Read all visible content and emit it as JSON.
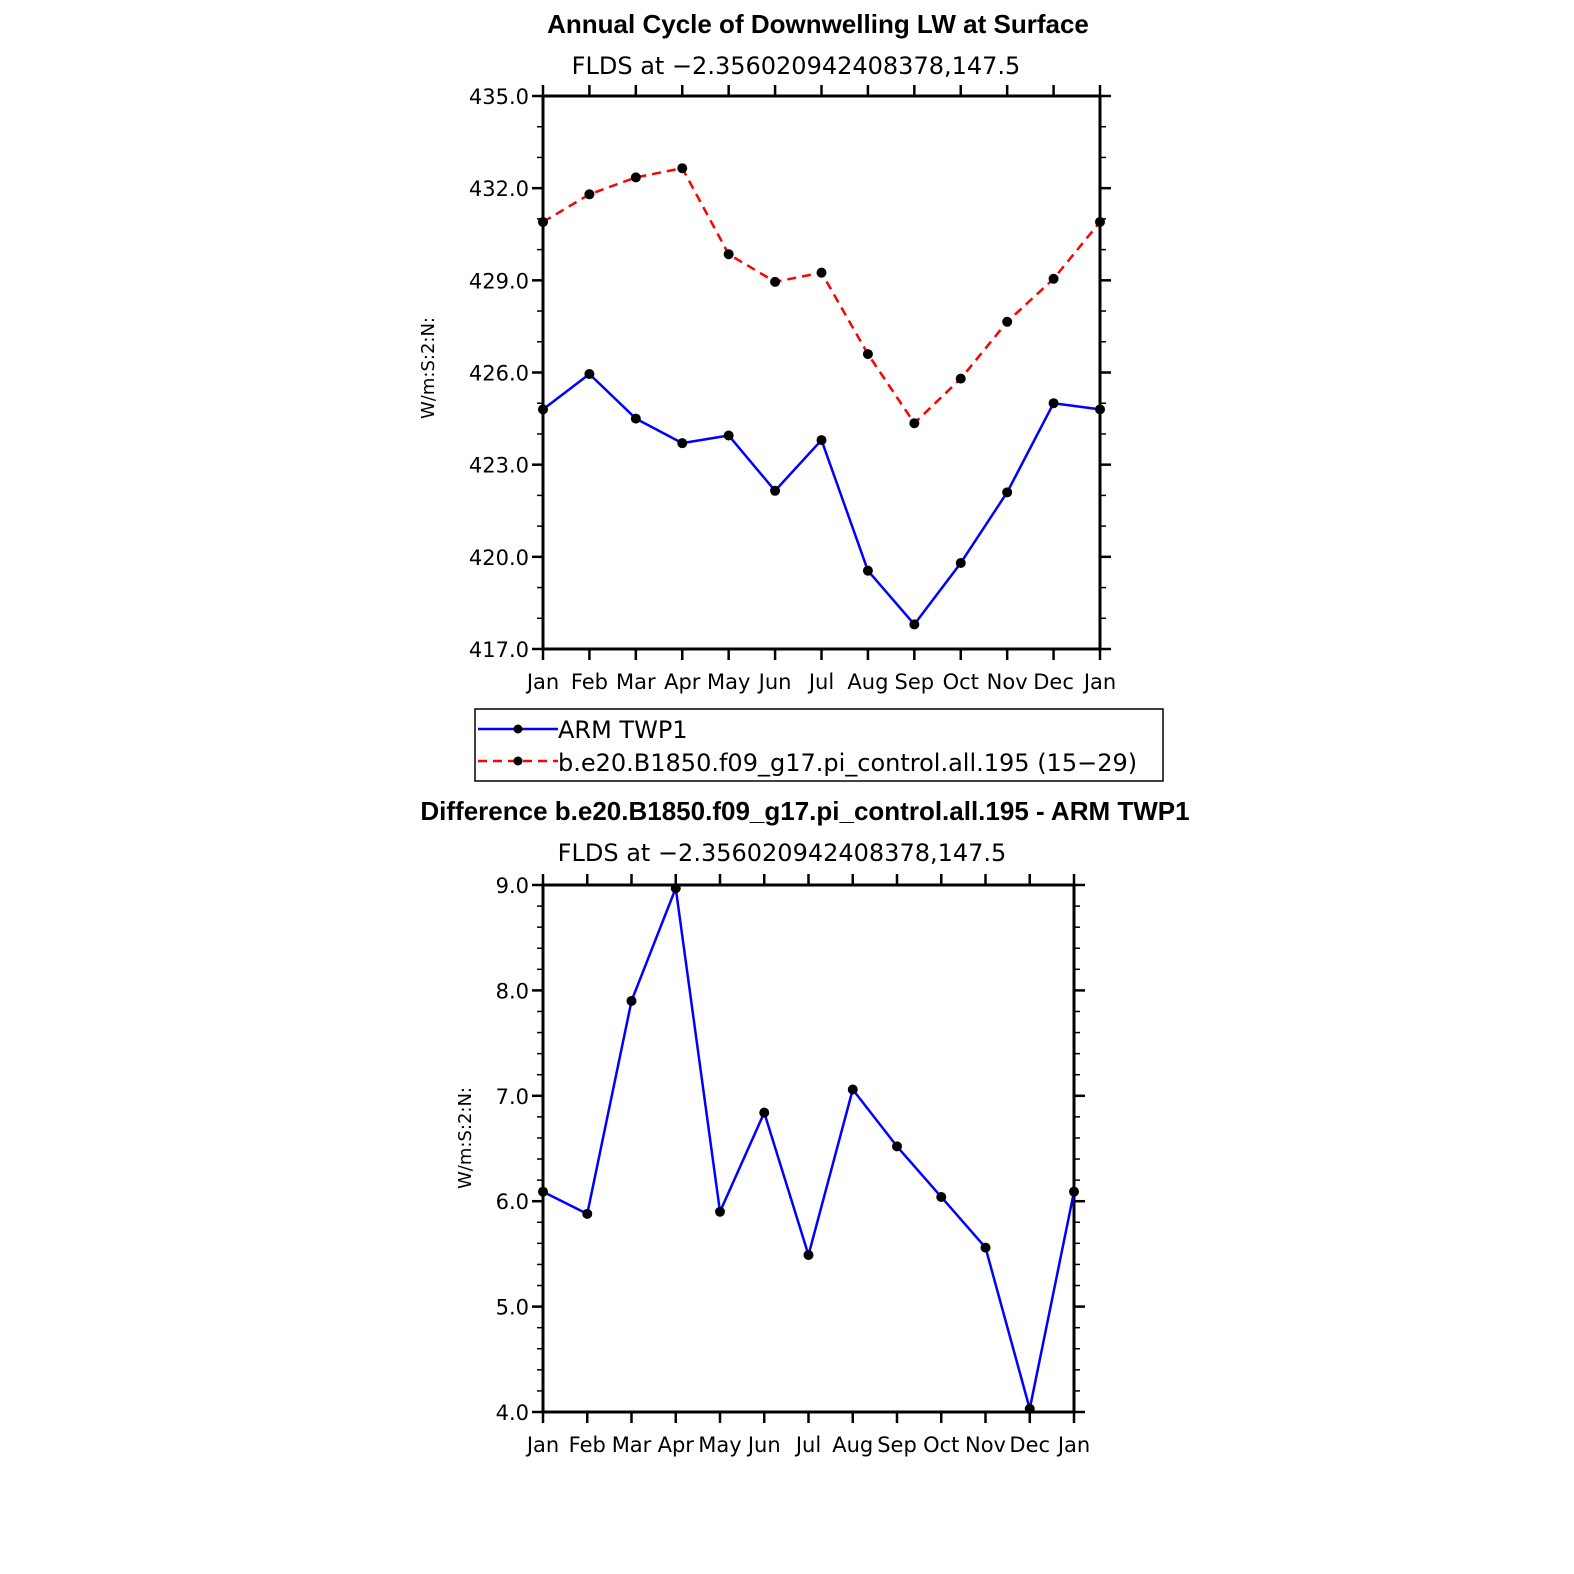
{
  "chart_data": [
    {
      "type": "line",
      "title": "Annual Cycle of Downwelling LW at Surface",
      "subtitle": "FLDS at −2.356020942408378,147.5",
      "ylabel": "W/m:S:2:N:",
      "xlabel": "",
      "categories": [
        "Jan",
        "Feb",
        "Mar",
        "Apr",
        "May",
        "Jun",
        "Jul",
        "Aug",
        "Sep",
        "Oct",
        "Nov",
        "Dec",
        "Jan"
      ],
      "ylim": [
        417.0,
        435.0
      ],
      "yticks": [
        417.0,
        420.0,
        423.0,
        426.0,
        429.0,
        432.0,
        435.0
      ],
      "ytick_labels": [
        "417.0",
        "420.0",
        "423.0",
        "426.0",
        "429.0",
        "432.0",
        "435.0"
      ],
      "grid": false,
      "legend_position": "bottom",
      "series": [
        {
          "name": "ARM TWP1",
          "color": "#0000ff",
          "dash": "solid",
          "values": [
            424.8,
            425.95,
            424.5,
            423.7,
            423.95,
            422.15,
            423.8,
            419.55,
            417.8,
            419.8,
            422.1,
            425.0,
            424.8
          ]
        },
        {
          "name": "b.e20.B1850.f09_g17.pi_control.all.195 (15−29)",
          "color": "#ff0000",
          "dash": "dashed",
          "values": [
            430.9,
            431.8,
            432.35,
            432.65,
            429.85,
            428.95,
            429.25,
            426.6,
            424.35,
            425.8,
            427.65,
            429.05,
            430.9
          ]
        }
      ]
    },
    {
      "type": "line",
      "title": "Difference b.e20.B1850.f09_g17.pi_control.all.195 - ARM TWP1",
      "subtitle": "FLDS at −2.356020942408378,147.5",
      "ylabel": "W/m:S:2:N:",
      "xlabel": "",
      "categories": [
        "Jan",
        "Feb",
        "Mar",
        "Apr",
        "May",
        "Jun",
        "Jul",
        "Aug",
        "Sep",
        "Oct",
        "Nov",
        "Dec",
        "Jan"
      ],
      "ylim": [
        4.0,
        9.0
      ],
      "yticks": [
        4.0,
        5.0,
        6.0,
        7.0,
        8.0,
        9.0
      ],
      "ytick_labels": [
        "4.0",
        "5.0",
        "6.0",
        "7.0",
        "8.0",
        "9.0"
      ],
      "grid": false,
      "series": [
        {
          "name": "",
          "color": "#0000ff",
          "dash": "solid",
          "values": [
            6.09,
            5.88,
            7.9,
            8.97,
            5.9,
            6.84,
            5.49,
            7.06,
            6.52,
            6.04,
            5.56,
            4.03,
            6.09
          ]
        }
      ]
    }
  ]
}
